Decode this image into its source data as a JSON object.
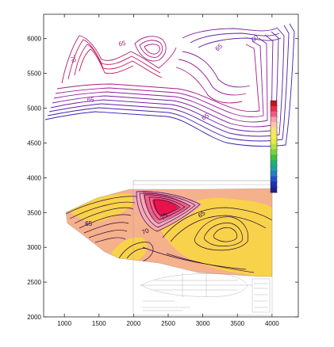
{
  "chart_data": {
    "type": "contour",
    "title": "",
    "xlabel": "",
    "ylabel": "",
    "xlim": [
      700,
      4380
    ],
    "ylim": [
      2000,
      6350
    ],
    "x_ticks": [
      1000,
      1500,
      2000,
      2500,
      3000,
      3500,
      4000
    ],
    "y_ticks": [
      2000,
      2500,
      3000,
      3500,
      4000,
      4500,
      5000,
      5500,
      6000
    ],
    "grid": false,
    "colors": {
      "low": "#3b1fb0",
      "mid": "#9b1f9b",
      "high": "#e0104f",
      "fill_low": "#f5b08c",
      "fill_mid": "#f8d24a",
      "fill_peak": "#e8134a"
    },
    "colorbar": {
      "colors": [
        "#c0141e",
        "#e8304a",
        "#f05a7e",
        "#f6a0b4",
        "#f8c8a0",
        "#f6e07a",
        "#f4ec50",
        "#e0ec40",
        "#b8e040",
        "#7cd040",
        "#3cc040",
        "#20b070",
        "#20a0a0",
        "#2080c0",
        "#2050c8",
        "#2030b0",
        "#202090"
      ]
    },
    "upper_contours": {
      "region": "x 1000-4000, y 4300-6150",
      "labels": [
        {
          "text": "70",
          "x": 1100,
          "y": 5700,
          "rotate": 70,
          "color": "#b01a6a"
        },
        {
          "text": "65",
          "x": 1840,
          "y": 5900,
          "rotate": -10,
          "color": "#b01a6a"
        },
        {
          "text": "65",
          "x": 3250,
          "y": 5850,
          "rotate": -40,
          "color": "#7a1ea0"
        },
        {
          "text": "60",
          "x": 3770,
          "y": 5980,
          "rotate": -40,
          "color": "#5a20a8"
        },
        {
          "text": "65",
          "x": 1380,
          "y": 5090,
          "rotate": 0,
          "color": "#8a1e9a"
        },
        {
          "text": "65",
          "x": 3050,
          "y": 4850,
          "rotate": -30,
          "color": "#7a1ea0"
        }
      ]
    },
    "lower_contours": {
      "region": "x 800-3850, y 2700-3950",
      "peak": {
        "x": 2450,
        "y": 3570
      },
      "secondary_peak": {
        "x": 3380,
        "y": 3260
      },
      "labels": [
        {
          "text": "75",
          "x": 2460,
          "y": 3420,
          "rotate": -40,
          "color": "#2a0a3a"
        },
        {
          "text": "65",
          "x": 3000,
          "y": 3450,
          "rotate": -35,
          "color": "#2a0a3a"
        },
        {
          "text": "65",
          "x": 1350,
          "y": 3310,
          "rotate": 0,
          "color": "#2a0a3a"
        },
        {
          "text": "70",
          "x": 2180,
          "y": 3200,
          "rotate": -20,
          "color": "#2a0a3a"
        }
      ]
    }
  }
}
